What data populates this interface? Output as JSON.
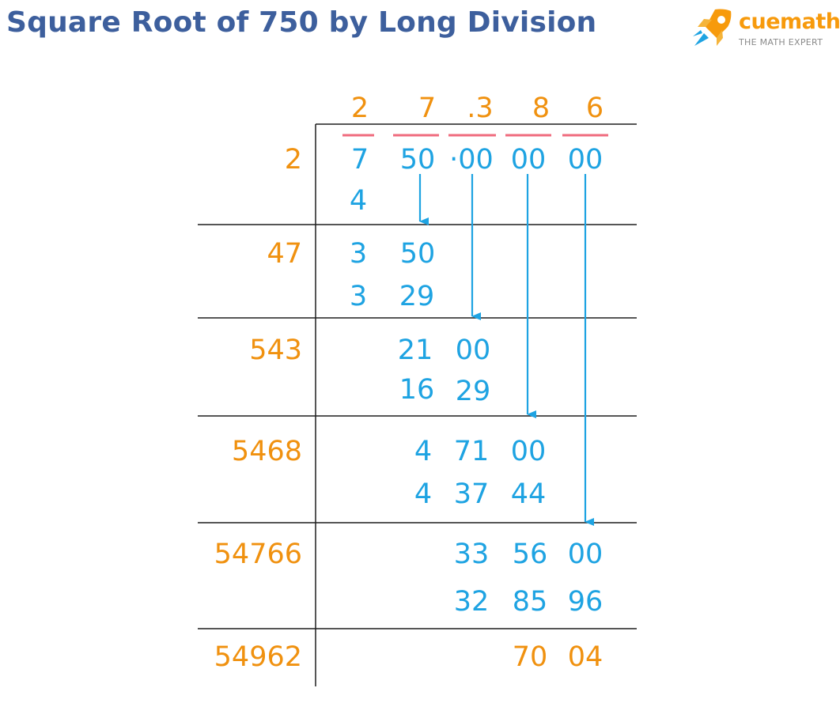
{
  "title": "Square Root of 750 by Long Division",
  "brand": {
    "name": "cuemath",
    "tagline": "THE MATH EXPERT",
    "icon": "rocket-icon",
    "color": "#f79a0c"
  },
  "colors": {
    "title": "#3d5f9d",
    "divisor": "#f0910f",
    "working": "#1ea3e2",
    "bar": "#ef6b7e",
    "rule": "#1f1f1f"
  },
  "quotient": [
    "2",
    "7",
    ".3",
    "8",
    "6"
  ],
  "dividend": [
    "7",
    "50",
    "·00",
    "00",
    "00"
  ],
  "steps": [
    {
      "divisor": "2",
      "rows": [
        [
          "7",
          "50",
          "·00",
          "00",
          "00"
        ],
        [
          "4"
        ]
      ]
    },
    {
      "divisor": "47",
      "rows": [
        [
          "3",
          "50"
        ],
        [
          "3",
          "29"
        ]
      ]
    },
    {
      "divisor": "543",
      "rows": [
        [
          "21",
          "00"
        ],
        [
          "16",
          "29"
        ]
      ]
    },
    {
      "divisor": "5468",
      "rows": [
        [
          "4",
          "71",
          "00"
        ],
        [
          "4",
          "37",
          "44"
        ]
      ]
    },
    {
      "divisor": "54766",
      "rows": [
        [
          "33",
          "56",
          "00"
        ],
        [
          "32",
          "85",
          "96"
        ]
      ]
    },
    {
      "divisor": "54962",
      "rows": [
        [
          "70",
          "04"
        ]
      ]
    }
  ],
  "remainder": [
    "70",
    "04"
  ]
}
